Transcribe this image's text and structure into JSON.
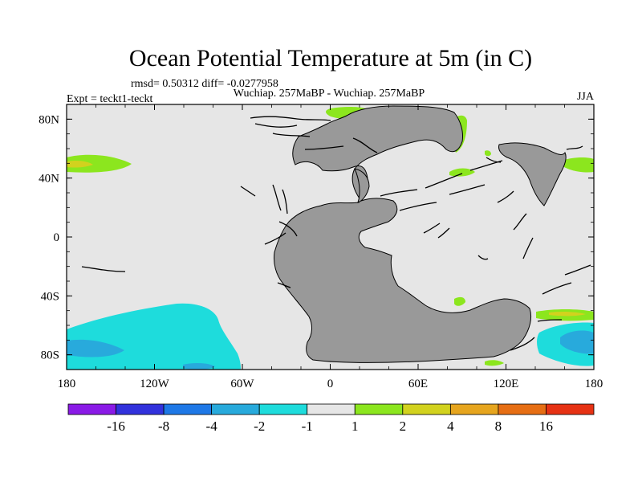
{
  "chart_data": {
    "type": "heatmap",
    "title": "Ocean Potential Temperature at 5m (in C)",
    "stats": "rmsd= 0.50312 diff= -0.0277958",
    "comparison": "Wuchiap. 257MaBP - Wuchiap. 257MaBP",
    "experiment": "Expt = teckt1-teckt",
    "season": "JJA",
    "xlim": [
      -180,
      180
    ],
    "ylim": [
      -90,
      90
    ],
    "x_ticks": [
      {
        "value": -180,
        "label": "180"
      },
      {
        "value": -120,
        "label": "120W"
      },
      {
        "value": -60,
        "label": "60W"
      },
      {
        "value": 0,
        "label": "0"
      },
      {
        "value": 60,
        "label": "60E"
      },
      {
        "value": 120,
        "label": "120E"
      },
      {
        "value": 180,
        "label": "180"
      }
    ],
    "y_ticks": [
      {
        "value": 80,
        "label": "80N"
      },
      {
        "value": 40,
        "label": "40N"
      },
      {
        "value": 0,
        "label": "0"
      },
      {
        "value": -40,
        "label": "40S"
      },
      {
        "value": -80,
        "label": "80S"
      }
    ],
    "colorbar": {
      "colors": [
        "#8a1ae6",
        "#3232dc",
        "#1e78e6",
        "#28aadc",
        "#1edcdc",
        "#e6e6e6",
        "#8ce61e",
        "#d2d21e",
        "#e6a51e",
        "#e66e14",
        "#e63214"
      ],
      "labels": [
        "-16",
        "-8",
        "-4",
        "-2",
        "-1",
        "1",
        "2",
        "4",
        "8",
        "16"
      ]
    },
    "land_color": "#999999",
    "background_color": "#e6e6e6",
    "anomaly_regions": [
      {
        "category": "1 to 2",
        "color": "#8ce61e",
        "location": "north Pacific ~45N, 180-140W"
      },
      {
        "category": "2 to 4",
        "color": "#d2d21e",
        "location": "north Pacific core ~45N"
      },
      {
        "category": "-2 to -1",
        "color": "#1edcdc",
        "location": "south Pacific 45S-90S, 180-40W"
      },
      {
        "category": "-2 to -1",
        "color": "#1edcdc",
        "location": "southwest Pacific 60S-85S, 145E-180"
      },
      {
        "category": "-4 to -2",
        "color": "#28aadc",
        "location": "cores ~80S near 180 and 160E"
      },
      {
        "category": "1 to 2",
        "color": "#8ce61e",
        "location": "Arctic coast 80-85N, 20W-20E"
      },
      {
        "category": "1 to 2",
        "color": "#8ce61e",
        "location": "northeast continent coast 60-85N"
      },
      {
        "category": "1 to 2",
        "color": "#8ce61e",
        "location": "Tethys ~45-50N, 145E-180"
      },
      {
        "category": "1 to 2",
        "color": "#8ce61e",
        "location": "south continent coasts ~40S and ~55S"
      }
    ]
  }
}
